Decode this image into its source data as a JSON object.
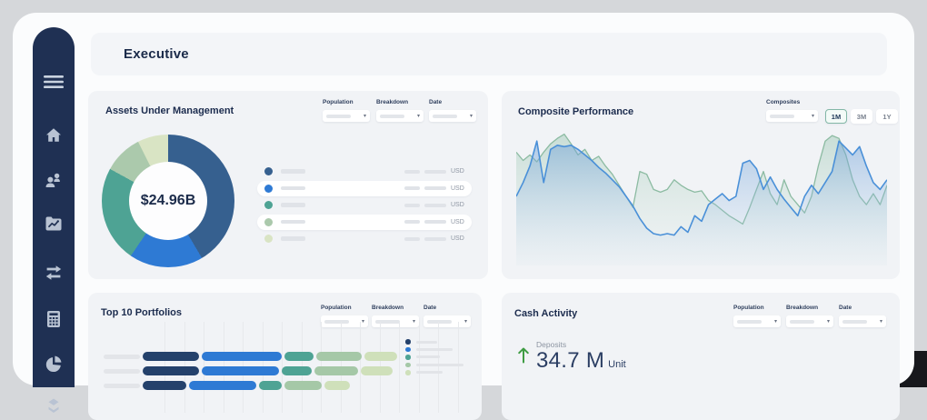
{
  "app": {
    "title": "Executive"
  },
  "colors": {
    "sidebar_bg": "#1f3053",
    "navy": "#24416b",
    "steel_blue": "#36608f",
    "bright_blue": "#2e7ad4",
    "teal": "#4ea394",
    "sage": "#abc9ac",
    "pale_green": "#d9e4c4",
    "positive_green": "#3f9c43",
    "selected_border": "#83b7a7"
  },
  "sidebar": {
    "items": [
      {
        "icon": "menu"
      },
      {
        "icon": "home"
      },
      {
        "icon": "users"
      },
      {
        "icon": "portfolio-chart"
      },
      {
        "icon": "transfers"
      },
      {
        "icon": "calculator"
      },
      {
        "icon": "pie-chart"
      },
      {
        "icon": "layers"
      }
    ]
  },
  "filters": {
    "population": "Population",
    "breakdown": "Breakdown",
    "date": "Date",
    "composites": "Composites"
  },
  "cards": {
    "aum": {
      "title": "Assets Under Management",
      "chart_data": {
        "type": "donut",
        "center_label": "$24.96B",
        "slices": [
          {
            "color": "#36608f",
            "value": 41.5,
            "currency": "USD"
          },
          {
            "color": "#2e7ad4",
            "value": 18.0,
            "currency": "USD"
          },
          {
            "color": "#4ea394",
            "value": 23.5,
            "currency": "USD"
          },
          {
            "color": "#abc9ac",
            "value": 9.5,
            "currency": "USD"
          },
          {
            "color": "#d9e4c4",
            "value": 7.5,
            "currency": "USD"
          }
        ]
      }
    },
    "performance": {
      "title": "Composite Performance",
      "ranges": [
        "1M",
        "3M",
        "1Y"
      ],
      "selected_range": "1M",
      "chart_data": {
        "type": "area",
        "x_range": [
          0,
          100
        ],
        "y_range": [
          0,
          100
        ],
        "grid": false,
        "legend": "none",
        "series": [
          {
            "name": "composite-green",
            "color": "#8cbba2",
            "fill_top": "rgba(150,195,175,0.45)",
            "fill_bottom": "rgba(200,225,210,0.04)",
            "values": [
              82,
              76,
              80,
              75,
              82,
              88,
              92,
              95,
              88,
              80,
              84,
              76,
              79,
              72,
              66,
              58,
              50,
              42,
              68,
              66,
              55,
              53,
              55,
              62,
              58,
              55,
              53,
              54,
              47,
              44,
              40,
              36,
              33,
              30,
              42,
              55,
              68,
              52,
              44,
              62,
              50,
              44,
              38,
              50,
              72,
              90,
              94,
              92,
              80,
              62,
              50,
              44,
              52,
              44,
              58
            ]
          },
          {
            "name": "composite-blue",
            "color": "#4a90d8",
            "fill_top": "rgba(110,160,215,0.50)",
            "fill_bottom": "rgba(190,215,240,0.05)",
            "values": [
              50,
              60,
              72,
              90,
              60,
              84,
              87,
              86,
              87,
              84,
              80,
              76,
              71,
              67,
              62,
              57,
              50,
              43,
              34,
              27,
              23,
              22,
              23,
              22,
              28,
              24,
              36,
              32,
              44,
              48,
              52,
              47,
              50,
              74,
              76,
              70,
              55,
              64,
              55,
              48,
              42,
              36,
              50,
              58,
              52,
              60,
              68,
              90,
              85,
              80,
              86,
              72,
              60,
              55,
              62
            ]
          }
        ]
      }
    },
    "top10": {
      "title": "Top 10 Portfolios",
      "chart_data": {
        "type": "stacked-bar-horizontal",
        "grid": true,
        "segment_colors": [
          "#24416b",
          "#2e7ad4",
          "#4ea394",
          "#a5c8a7",
          "#cfe0ba"
        ],
        "rows": [
          {
            "segments": [
              62,
              88,
              32,
              50,
              36
            ]
          },
          {
            "segments": [
              62,
              85,
              33,
              48,
              35
            ]
          },
          {
            "segments": [
              48,
              74,
              25,
              41,
              28
            ]
          }
        ],
        "legend_bar_widths": [
          23,
          40,
          26,
          52,
          29
        ]
      }
    },
    "cash": {
      "title": "Cash Activity",
      "metric": {
        "label": "Deposits",
        "value": "34.7 M",
        "unit": "Unit",
        "trend": "up"
      }
    }
  }
}
